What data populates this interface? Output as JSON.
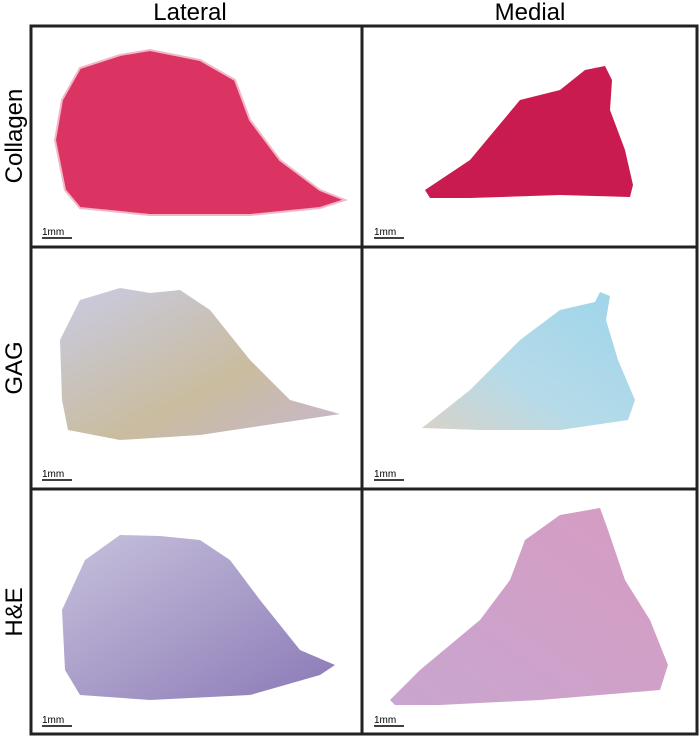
{
  "column_headers": [
    "Lateral",
    "Medial"
  ],
  "rows": [
    {
      "label": "Collagen",
      "panels": [
        {
          "scale_bar": "1mm"
        },
        {
          "scale_bar": "1mm"
        }
      ]
    },
    {
      "label": "GAG",
      "panels": [
        {
          "scale_bar": "1mm"
        },
        {
          "scale_bar": "1mm"
        }
      ]
    },
    {
      "label": "H&E",
      "panels": [
        {
          "scale_bar": "1mm"
        },
        {
          "scale_bar": "1mm"
        }
      ]
    }
  ]
}
